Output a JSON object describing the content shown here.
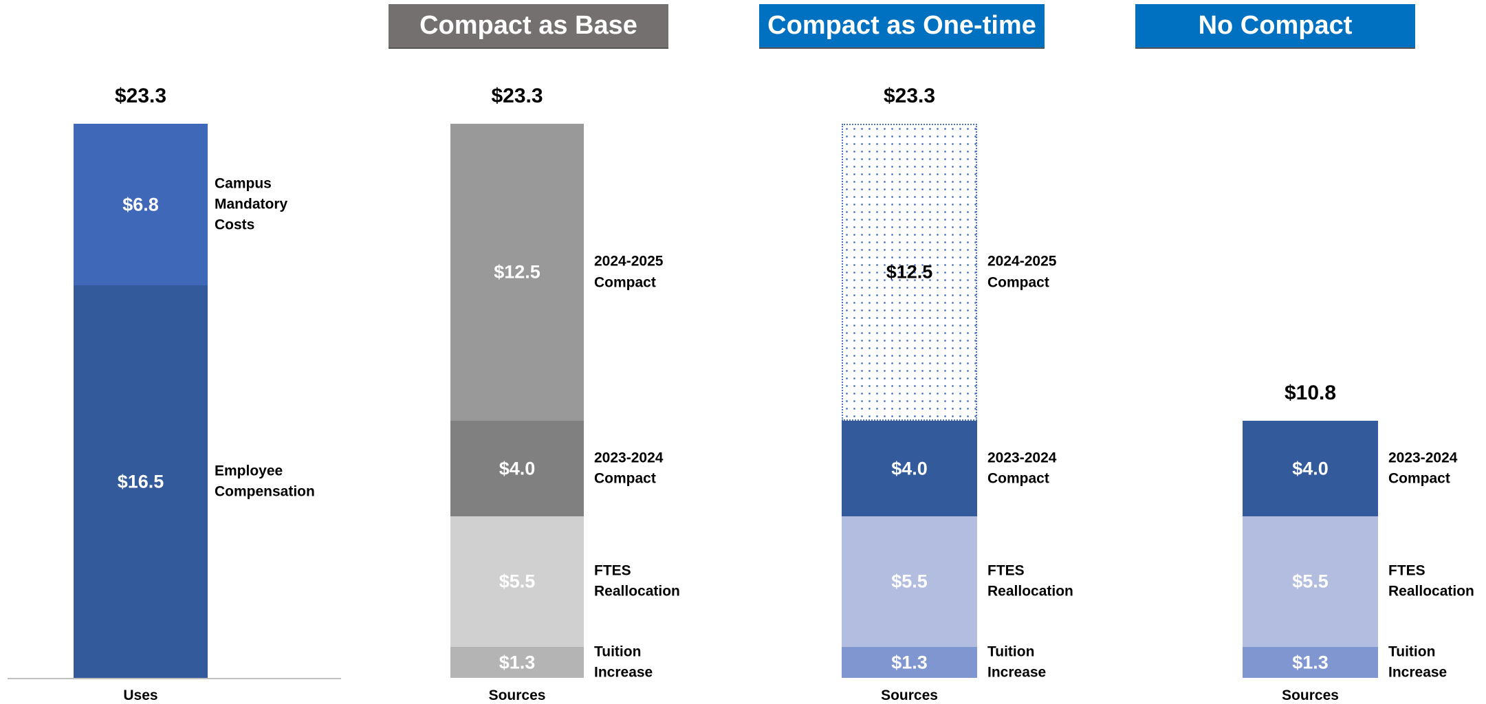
{
  "chart_data": [
    {
      "type": "bar",
      "stacked": true,
      "categories": [
        "Uses"
      ],
      "ylim": [
        0,
        23.3
      ],
      "baseline": true,
      "total": {
        "value": 23.3,
        "label": "$23.3"
      },
      "series": [
        {
          "name": "Employee Compensation",
          "color": "#335a9a",
          "label_color": "#ffffff",
          "values": [
            16.5
          ],
          "value_labels": [
            "$16.5"
          ]
        },
        {
          "name": "Campus Mandatory Costs",
          "color": "#3f68b8",
          "label_color": "#ffffff",
          "values": [
            6.8
          ],
          "value_labels": [
            "$6.8"
          ]
        }
      ]
    },
    {
      "type": "bar",
      "stacked": true,
      "title": "Compact as Base",
      "title_color": "#747070",
      "categories": [
        "Sources"
      ],
      "ylim": [
        0,
        23.3
      ],
      "total": {
        "value": 23.3,
        "label": "$23.3"
      },
      "series": [
        {
          "name": "Tuition Increase",
          "color": "#b4b4b4",
          "label_color": "#ffffff",
          "values": [
            1.3
          ],
          "value_labels": [
            "$1.3"
          ]
        },
        {
          "name": "FTES Reallocation",
          "color": "#d0d0d0",
          "label_color": "#ffffff",
          "values": [
            5.5
          ],
          "value_labels": [
            "$5.5"
          ]
        },
        {
          "name": "2023-2024 Compact",
          "color": "#808080",
          "label_color": "#ffffff",
          "values": [
            4.0
          ],
          "value_labels": [
            "$4.0"
          ]
        },
        {
          "name": "2024-2025 Compact",
          "color": "#999999",
          "label_color": "#ffffff",
          "values": [
            12.5
          ],
          "value_labels": [
            "$12.5"
          ]
        }
      ]
    },
    {
      "type": "bar",
      "stacked": true,
      "title": "Compact as One-time",
      "title_color": "#0070c0",
      "categories": [
        "Sources"
      ],
      "ylim": [
        0,
        23.3
      ],
      "total": {
        "value": 23.3,
        "label": "$23.3"
      },
      "series": [
        {
          "name": "Tuition Increase",
          "color": "#7f96d1",
          "label_color": "#ffffff",
          "values": [
            1.3
          ],
          "value_labels": [
            "$1.3"
          ]
        },
        {
          "name": "FTES Reallocation",
          "color": "#b3bddf",
          "label_color": "#ffffff",
          "values": [
            5.5
          ],
          "value_labels": [
            "$5.5"
          ]
        },
        {
          "name": "2023-2024 Compact",
          "color": "#335a9a",
          "label_color": "#ffffff",
          "values": [
            4.0
          ],
          "value_labels": [
            "$4.0"
          ]
        },
        {
          "name": "2024-2025 Compact",
          "color": "#4a72c4",
          "pattern": "dots",
          "label_color": "#000000",
          "values": [
            12.5
          ],
          "value_labels": [
            "$12.5"
          ]
        }
      ]
    },
    {
      "type": "bar",
      "stacked": true,
      "title": "No Compact",
      "title_color": "#0070c0",
      "categories": [
        "Sources"
      ],
      "ylim": [
        0,
        23.3
      ],
      "total": {
        "value": 10.8,
        "label": "$10.8"
      },
      "series": [
        {
          "name": "Tuition Increase",
          "color": "#7f96d1",
          "label_color": "#ffffff",
          "values": [
            1.3
          ],
          "value_labels": [
            "$1.3"
          ]
        },
        {
          "name": "FTES Reallocation",
          "color": "#b3bddf",
          "label_color": "#ffffff",
          "values": [
            5.5
          ],
          "value_labels": [
            "$5.5"
          ]
        },
        {
          "name": "2023-2024 Compact",
          "color": "#335a9a",
          "label_color": "#ffffff",
          "values": [
            4.0
          ],
          "value_labels": [
            "$4.0"
          ]
        }
      ]
    }
  ]
}
